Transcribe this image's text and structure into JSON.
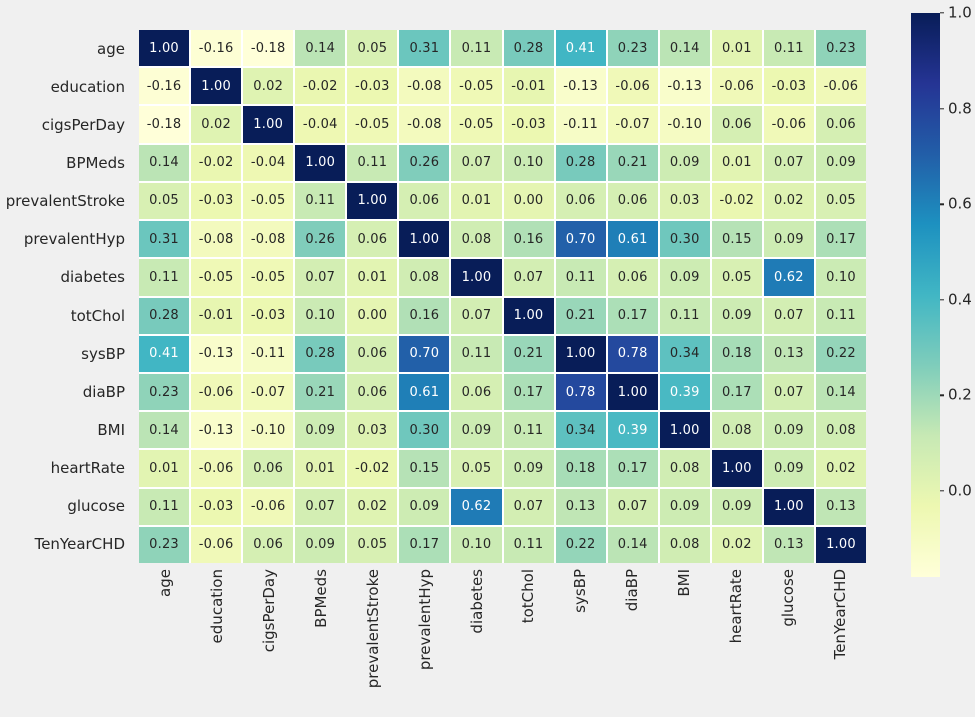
{
  "colors": {
    "figure_background": "#f0f0f0",
    "cell_gap": "#ffffff",
    "annotation_dark": "#262626",
    "annotation_light": "#ffffff",
    "tick_label": "#262626"
  },
  "chart_data": {
    "type": "heatmap",
    "title": "",
    "categories": [
      "age",
      "education",
      "cigsPerDay",
      "BPMeds",
      "prevalentStroke",
      "prevalentHyp",
      "diabetes",
      "totChol",
      "sysBP",
      "diaBP",
      "BMI",
      "heartRate",
      "glucose",
      "TenYearCHD"
    ],
    "matrix": [
      [
        1.0,
        -0.16,
        -0.18,
        0.14,
        0.05,
        0.31,
        0.11,
        0.28,
        0.41,
        0.23,
        0.14,
        0.01,
        0.11,
        0.23
      ],
      [
        -0.16,
        1.0,
        0.02,
        -0.02,
        -0.03,
        -0.08,
        -0.05,
        -0.01,
        -0.13,
        -0.06,
        -0.13,
        -0.06,
        -0.03,
        -0.06
      ],
      [
        -0.18,
        0.02,
        1.0,
        -0.04,
        -0.05,
        -0.08,
        -0.05,
        -0.03,
        -0.11,
        -0.07,
        -0.1,
        0.06,
        -0.06,
        0.06
      ],
      [
        0.14,
        -0.02,
        -0.04,
        1.0,
        0.11,
        0.26,
        0.07,
        0.1,
        0.28,
        0.21,
        0.09,
        0.01,
        0.07,
        0.09
      ],
      [
        0.05,
        -0.03,
        -0.05,
        0.11,
        1.0,
        0.06,
        0.01,
        0.0,
        0.06,
        0.06,
        0.03,
        -0.02,
        0.02,
        0.05
      ],
      [
        0.31,
        -0.08,
        -0.08,
        0.26,
        0.06,
        1.0,
        0.08,
        0.16,
        0.7,
        0.61,
        0.3,
        0.15,
        0.09,
        0.17
      ],
      [
        0.11,
        -0.05,
        -0.05,
        0.07,
        0.01,
        0.08,
        1.0,
        0.07,
        0.11,
        0.06,
        0.09,
        0.05,
        0.62,
        0.1
      ],
      [
        0.28,
        -0.01,
        -0.03,
        0.1,
        0.0,
        0.16,
        0.07,
        1.0,
        0.21,
        0.17,
        0.11,
        0.09,
        0.07,
        0.11
      ],
      [
        0.41,
        -0.13,
        -0.11,
        0.28,
        0.06,
        0.7,
        0.11,
        0.21,
        1.0,
        0.78,
        0.34,
        0.18,
        0.13,
        0.22
      ],
      [
        0.23,
        -0.06,
        -0.07,
        0.21,
        0.06,
        0.61,
        0.06,
        0.17,
        0.78,
        1.0,
        0.39,
        0.17,
        0.07,
        0.14
      ],
      [
        0.14,
        -0.13,
        -0.1,
        0.09,
        0.03,
        0.3,
        0.09,
        0.11,
        0.34,
        0.39,
        1.0,
        0.08,
        0.09,
        0.08
      ],
      [
        0.01,
        -0.06,
        0.06,
        0.01,
        -0.02,
        0.15,
        0.05,
        0.09,
        0.18,
        0.17,
        0.08,
        1.0,
        0.09,
        0.02
      ],
      [
        0.11,
        -0.03,
        -0.06,
        0.07,
        0.02,
        0.09,
        0.62,
        0.07,
        0.13,
        0.07,
        0.09,
        0.09,
        1.0,
        0.13
      ],
      [
        0.23,
        -0.06,
        0.06,
        0.09,
        0.05,
        0.17,
        0.1,
        0.11,
        0.22,
        0.14,
        0.08,
        0.02,
        0.13,
        1.0
      ]
    ],
    "annotation_decimals": 2,
    "vmin": -0.18,
    "vmax": 1.0,
    "colormap": {
      "name": "YlGnBu",
      "stops": [
        {
          "t": 0.0,
          "color": "#ffffd9"
        },
        {
          "t": 0.125,
          "color": "#edf8b1"
        },
        {
          "t": 0.25,
          "color": "#c7e9b4"
        },
        {
          "t": 0.375,
          "color": "#7fcdbb"
        },
        {
          "t": 0.5,
          "color": "#41b6c4"
        },
        {
          "t": 0.625,
          "color": "#1d91c0"
        },
        {
          "t": 0.75,
          "color": "#225ea8"
        },
        {
          "t": 0.875,
          "color": "#253494"
        },
        {
          "t": 1.0,
          "color": "#081d58"
        }
      ]
    },
    "colorbar": {
      "position": "right",
      "tick_labels": [
        "1.0",
        "0.8",
        "0.6",
        "0.4",
        "0.2",
        "0.0"
      ],
      "tick_values": [
        1.0,
        0.8,
        0.6,
        0.4,
        0.2,
        0.0
      ]
    },
    "layout": {
      "xlabel": "",
      "ylabel": "",
      "legend": false,
      "grid": false,
      "x_tick_rotation_deg": 90
    }
  }
}
